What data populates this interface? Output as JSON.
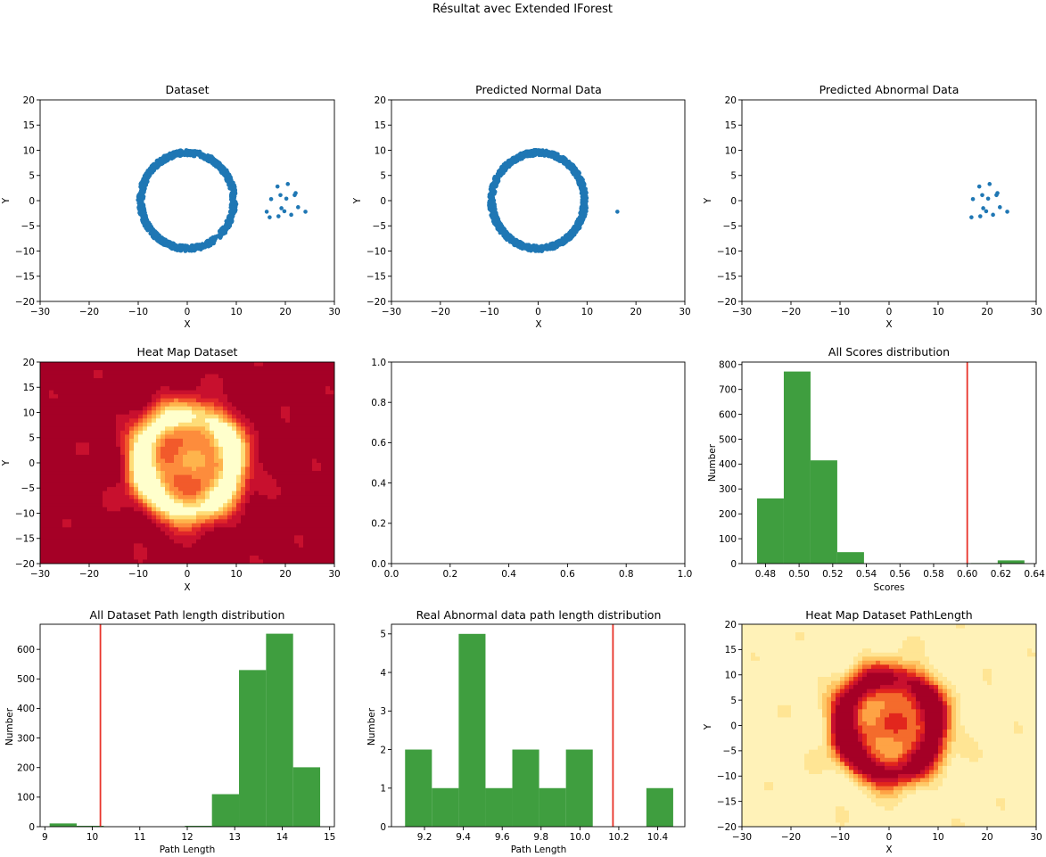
{
  "figure": {
    "suptitle": "Résultat avec Extended IForest"
  },
  "colors": {
    "points": "#1f77b4",
    "bars": "#3f9e3f",
    "threshold_line": "#e8332a",
    "red_ramp": [
      "#a50026",
      "#c8102e",
      "#e0262a",
      "#f25a2b",
      "#fd8c3c",
      "#feb44c",
      "#fedd78",
      "#ffffcc"
    ],
    "yellow_ramp": [
      "#fff2b8",
      "#ffe594",
      "#fec866",
      "#fea345",
      "#f46b2c",
      "#e2261d",
      "#c8102e",
      "#a50026"
    ]
  },
  "chart_data": [
    {
      "id": "dataset",
      "type": "scatter",
      "title": "Dataset",
      "xlabel": "X",
      "ylabel": "Y",
      "xlim": [
        -30,
        30
      ],
      "ylim": [
        -20,
        20
      ],
      "xticks": [
        -30,
        -20,
        -10,
        0,
        10,
        20,
        30
      ],
      "yticks": [
        -20,
        -15,
        -10,
        -5,
        0,
        5,
        10,
        15,
        20
      ],
      "series": [
        {
          "ring": {
            "center": [
              0,
              0
            ],
            "radius": 9.5,
            "count": 1000
          }
        },
        {
          "points": [
            [
              17.1,
              0.3
            ],
            [
              16.2,
              -2.2
            ],
            [
              16.8,
              -3.3
            ],
            [
              18.4,
              2.8
            ],
            [
              19.0,
              1.1
            ],
            [
              18.6,
              -3.1
            ],
            [
              19.2,
              -1.5
            ],
            [
              19.8,
              -2.1
            ],
            [
              20.2,
              0.4
            ],
            [
              20.5,
              3.3
            ],
            [
              21.2,
              -2.8
            ],
            [
              21.9,
              1.1
            ],
            [
              22.1,
              1.5
            ],
            [
              22.6,
              -1.3
            ],
            [
              24.1,
              -2.2
            ]
          ]
        }
      ]
    },
    {
      "id": "normal",
      "type": "scatter",
      "title": "Predicted Normal Data",
      "xlabel": "X",
      "ylabel": "Y",
      "xlim": [
        -30,
        30
      ],
      "ylim": [
        -20,
        20
      ],
      "xticks": [
        -30,
        -20,
        -10,
        0,
        10,
        20,
        30
      ],
      "yticks": [
        -20,
        -15,
        -10,
        -5,
        0,
        5,
        10,
        15,
        20
      ],
      "series": [
        {
          "ring": {
            "center": [
              0,
              0
            ],
            "radius": 9.5,
            "count": 1000
          }
        },
        {
          "points": [
            [
              16.2,
              -2.2
            ]
          ]
        }
      ]
    },
    {
      "id": "abnormal",
      "type": "scatter",
      "title": "Predicted Abnormal Data",
      "xlabel": "X",
      "ylabel": "Y",
      "xlim": [
        -30,
        30
      ],
      "ylim": [
        -20,
        20
      ],
      "xticks": [
        -30,
        -20,
        -10,
        0,
        10,
        20,
        30
      ],
      "yticks": [
        -20,
        -15,
        -10,
        -5,
        0,
        5,
        10,
        15,
        20
      ],
      "series": [
        {
          "points": [
            [
              17.1,
              0.3
            ],
            [
              16.8,
              -3.3
            ],
            [
              18.4,
              2.8
            ],
            [
              19.0,
              1.1
            ],
            [
              18.6,
              -3.1
            ],
            [
              19.2,
              -1.5
            ],
            [
              19.8,
              -2.1
            ],
            [
              20.2,
              0.4
            ],
            [
              20.5,
              3.3
            ],
            [
              21.2,
              -2.8
            ],
            [
              21.9,
              1.1
            ],
            [
              22.1,
              1.5
            ],
            [
              22.6,
              -1.3
            ],
            [
              24.1,
              -2.2
            ]
          ]
        }
      ]
    },
    {
      "id": "heat1",
      "type": "heatmap",
      "title": "Heat Map Dataset",
      "xlabel": "X",
      "ylabel": "Y",
      "xlim": [
        -30,
        30
      ],
      "ylim": [
        -20,
        20
      ],
      "xticks": [
        -30,
        -20,
        -10,
        0,
        10,
        20,
        30
      ],
      "yticks": [
        -20,
        -15,
        -10,
        -5,
        0,
        5,
        10,
        15,
        20
      ],
      "colormap": "red_ramp",
      "ring_radius": 9.5
    },
    {
      "id": "empty",
      "type": "scatter",
      "title": "",
      "xlabel": "",
      "ylabel": "",
      "xlim": [
        0,
        1
      ],
      "ylim": [
        0,
        1
      ],
      "xticks": [
        0.0,
        0.2,
        0.4,
        0.6,
        0.8,
        1.0
      ],
      "yticks": [
        0.0,
        0.2,
        0.4,
        0.6,
        0.8,
        1.0
      ],
      "series": []
    },
    {
      "id": "scores",
      "type": "bar",
      "title": "All Scores distribution",
      "xlabel": "Scores",
      "ylabel": "Number",
      "xlim": [
        0.466,
        0.641
      ],
      "ylim": [
        0,
        810
      ],
      "xticks": [
        0.48,
        0.5,
        0.52,
        0.54,
        0.56,
        0.58,
        0.6,
        0.62,
        0.64
      ],
      "yticks": [
        0,
        100,
        200,
        300,
        400,
        500,
        600,
        700,
        800
      ],
      "bin_edges": [
        0.475,
        0.4909,
        0.5068,
        0.5227,
        0.5386,
        0.5545,
        0.5704,
        0.5863,
        0.6022,
        0.6181,
        0.634
      ],
      "values": [
        262,
        772,
        415,
        46,
        0,
        0,
        0,
        0,
        2,
        13
      ],
      "threshold": 0.6
    },
    {
      "id": "pathlen",
      "type": "bar",
      "title": "All Dataset Path length distribution",
      "xlabel": "Path Length",
      "ylabel": "Number",
      "xlim": [
        8.9,
        15.1
      ],
      "ylim": [
        0,
        685
      ],
      "xticks": [
        9,
        10,
        11,
        12,
        13,
        14,
        15
      ],
      "yticks": [
        0,
        100,
        200,
        300,
        400,
        500,
        600
      ],
      "bin_edges": [
        9.1,
        9.67,
        10.24,
        10.81,
        11.38,
        11.95,
        12.52,
        13.09,
        13.66,
        14.23,
        14.8
      ],
      "values": [
        11,
        3,
        0,
        0,
        0,
        3,
        110,
        530,
        653,
        201
      ],
      "threshold": 10.17
    },
    {
      "id": "realabn",
      "type": "bar",
      "title": "Real Abnormal data path length distribution",
      "xlabel": "Path Length",
      "ylabel": "Number",
      "xlim": [
        9.03,
        10.54
      ],
      "ylim": [
        0,
        5.25
      ],
      "xticks": [
        9.2,
        9.4,
        9.6,
        9.8,
        10.0,
        10.2,
        10.4
      ],
      "yticks": [
        0,
        1,
        2,
        3,
        4,
        5
      ],
      "bin_edges": [
        9.1,
        9.238,
        9.376,
        9.514,
        9.652,
        9.79,
        9.928,
        10.066,
        10.204,
        10.342,
        10.48
      ],
      "values": [
        2,
        1,
        5,
        1,
        2,
        1,
        2,
        0,
        0,
        1
      ],
      "threshold": 10.17
    },
    {
      "id": "heat2",
      "type": "heatmap",
      "title": "Heat Map Dataset PathLength",
      "xlabel": "X",
      "ylabel": "Y",
      "xlim": [
        -30,
        30
      ],
      "ylim": [
        -20,
        20
      ],
      "xticks": [
        -30,
        -20,
        -10,
        0,
        10,
        20,
        30
      ],
      "yticks": [
        -20,
        -15,
        -10,
        -5,
        0,
        5,
        10,
        15,
        20
      ],
      "colormap": "yellow_ramp",
      "ring_radius": 9.5
    }
  ]
}
